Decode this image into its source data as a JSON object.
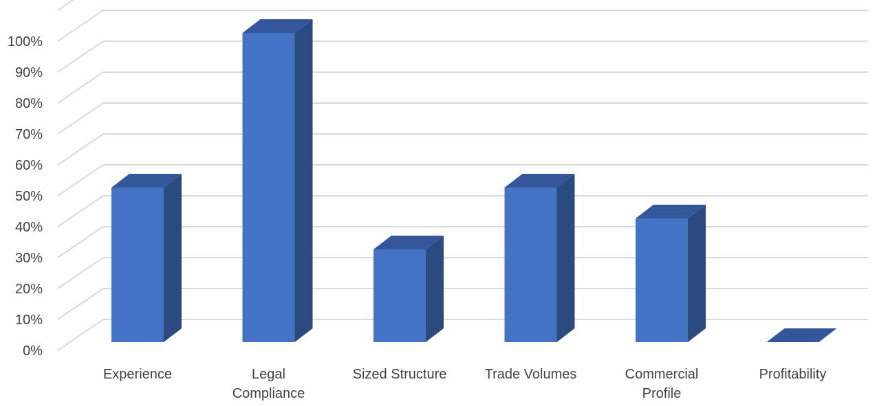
{
  "chart_data": {
    "type": "bar",
    "style": "3d-column",
    "categories": [
      "Experience",
      "Legal Compliance",
      "Sized Structure",
      "Trade Volumes",
      "Commercial Profile",
      "Profitability"
    ],
    "values": [
      50,
      100,
      30,
      50,
      40,
      0
    ],
    "ylim": [
      0,
      100
    ],
    "y_ticks": [
      0,
      10,
      20,
      30,
      40,
      50,
      60,
      70,
      80,
      90,
      100
    ],
    "y_tick_format": "percent",
    "grid": true,
    "title": "",
    "xlabel": "",
    "ylabel": "",
    "colors": {
      "bar_front": "#4472C4",
      "bar_side": "#2B4A80",
      "bar_top": "#33579A",
      "grid": "#D9D9D9",
      "text": "#404040"
    }
  }
}
